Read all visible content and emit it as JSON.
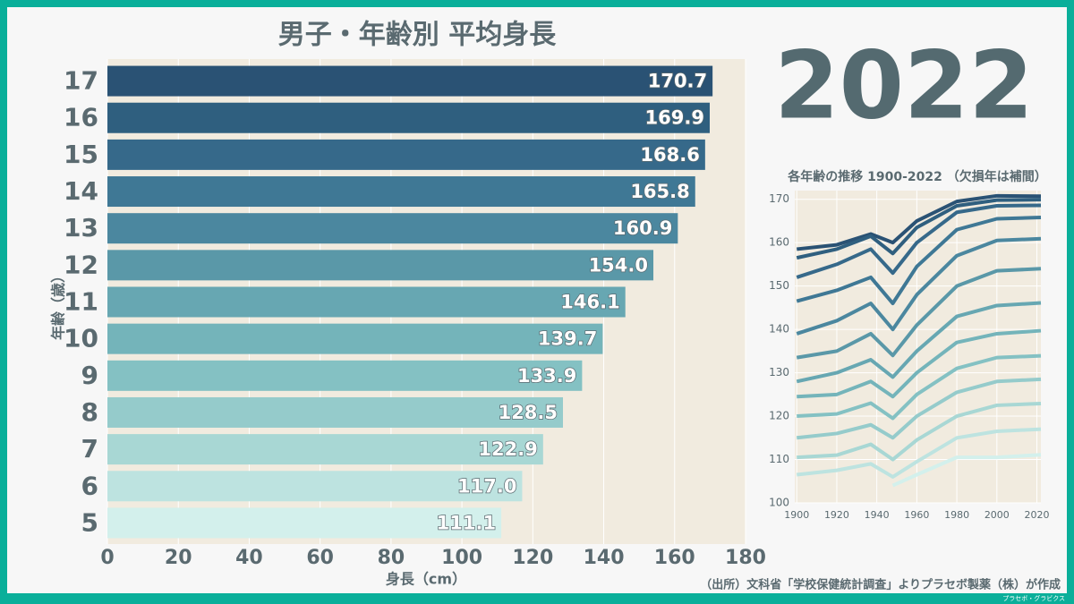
{
  "chart_data": [
    {
      "type": "barh",
      "title": "男子・年齢別 平均身長",
      "xlabel": "身長（cm）",
      "ylabel": "年齢（歳）",
      "categories": [
        "17",
        "16",
        "15",
        "14",
        "13",
        "12",
        "11",
        "10",
        "9",
        "8",
        "7",
        "6",
        "5"
      ],
      "values": [
        170.7,
        169.9,
        168.6,
        165.8,
        160.9,
        154.0,
        146.1,
        139.7,
        133.9,
        128.5,
        122.9,
        117.0,
        111.1
      ],
      "value_labels": [
        "170.7",
        "169.9",
        "168.6",
        "165.8",
        "160.9",
        "154.0",
        "146.1",
        "139.7",
        "133.9",
        "128.5",
        "122.9",
        "117.0",
        "111.1"
      ],
      "colors": [
        "#2a5274",
        "#2f5f7f",
        "#36698a",
        "#3f7895",
        "#4b879f",
        "#5a98a8",
        "#67a7b2",
        "#74b4ba",
        "#84c1c3",
        "#95cbcb",
        "#a8d7d4",
        "#bde3e0",
        "#d3f0ec"
      ],
      "xlim": [
        0,
        180
      ],
      "xticks": [
        0,
        20,
        40,
        60,
        80,
        100,
        120,
        140,
        160,
        180
      ],
      "grid": true
    },
    {
      "type": "line",
      "title": "各年齢の推移 1900-2022 （欠損年は補間）",
      "x": [
        1900,
        1920,
        1937,
        1948,
        1960,
        1980,
        2000,
        2022
      ],
      "series": [
        {
          "name": "17",
          "color": "#2a5274",
          "values": [
            158.5,
            159.5,
            162,
            160,
            165,
            169.5,
            170.8,
            170.7
          ]
        },
        {
          "name": "16",
          "color": "#2f5f7f",
          "values": [
            156.5,
            158.5,
            161.5,
            157.5,
            163.5,
            168.5,
            169.8,
            169.9
          ]
        },
        {
          "name": "15",
          "color": "#36698a",
          "values": [
            152,
            155,
            158.5,
            153,
            160,
            167,
            168.5,
            168.6
          ]
        },
        {
          "name": "14",
          "color": "#3f7895",
          "values": [
            146.5,
            149,
            152,
            146,
            154.5,
            163,
            165.5,
            165.8
          ]
        },
        {
          "name": "13",
          "color": "#4b879f",
          "values": [
            139,
            142,
            146,
            140,
            148,
            157,
            160.5,
            160.9
          ]
        },
        {
          "name": "12",
          "color": "#5a98a8",
          "values": [
            133.5,
            135,
            139,
            134,
            141,
            150,
            153.5,
            154.0
          ]
        },
        {
          "name": "11",
          "color": "#67a7b2",
          "values": [
            128,
            130,
            133,
            129,
            135,
            143,
            145.5,
            146.1
          ]
        },
        {
          "name": "10",
          "color": "#74b4ba",
          "values": [
            124.5,
            125,
            128,
            124.5,
            130,
            137,
            139,
            139.7
          ]
        },
        {
          "name": "9",
          "color": "#84c1c3",
          "values": [
            120,
            120.5,
            123,
            119.5,
            125,
            131,
            133.5,
            133.9
          ]
        },
        {
          "name": "8",
          "color": "#95cbcb",
          "values": [
            115,
            116,
            118,
            115,
            120,
            125.5,
            128,
            128.5
          ]
        },
        {
          "name": "7",
          "color": "#a8d7d4",
          "values": [
            110.5,
            111,
            113.5,
            110,
            114.5,
            120,
            122.5,
            122.9
          ]
        },
        {
          "name": "6",
          "color": "#bde3e0",
          "values": [
            106.5,
            107.5,
            109,
            106,
            109.5,
            115,
            116.5,
            117.0
          ]
        },
        {
          "name": "5",
          "color": "#d3f0ec",
          "values": [
            null,
            null,
            null,
            104,
            106.5,
            110.5,
            110.5,
            111.1
          ]
        }
      ],
      "xlim": [
        1899,
        2022
      ],
      "xticks": [
        1900,
        1920,
        1940,
        1960,
        1980,
        2000,
        2020
      ],
      "ylim": [
        100,
        172
      ],
      "yticks": [
        100,
        110,
        120,
        130,
        140,
        150,
        160,
        170
      ],
      "grid": true
    }
  ],
  "year": "2022",
  "source": "（出所）文科省「学校保健統計調査」よりプラセボ製薬（株）が作成",
  "brand": "プラセボ・グラビクス"
}
